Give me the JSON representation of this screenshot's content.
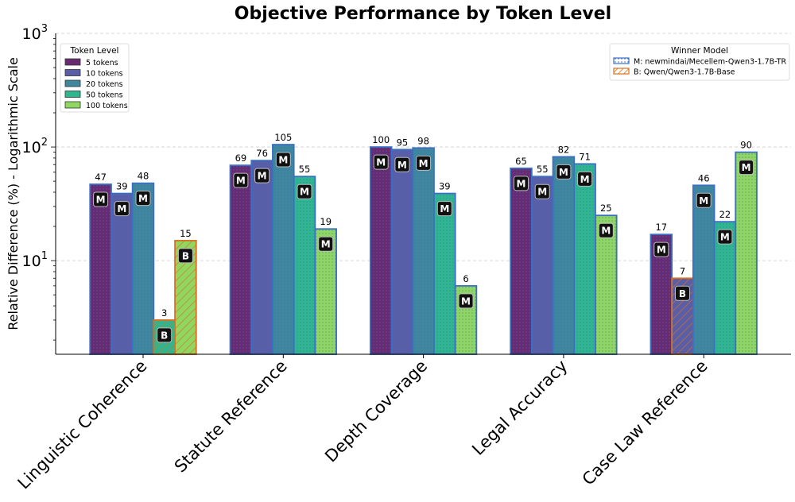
{
  "chart_data": {
    "type": "bar",
    "title": "Objective Performance by Token Level",
    "xlabel": "",
    "ylabel": "Relative Difference (%) - Logarithmic Scale",
    "yscale": "log",
    "ylim": [
      1.5,
      1000
    ],
    "yticks": [
      {
        "value": 10,
        "base": "10",
        "exp": "1"
      },
      {
        "value": 100,
        "base": "10",
        "exp": "2"
      },
      {
        "value": 1000,
        "base": "10",
        "exp": "3"
      }
    ],
    "grid": "horizontal dashed",
    "categories": [
      "Linguistic Coherence",
      "Statute Reference",
      "Depth Coverage",
      "Legal Accuracy",
      "Case Law Reference"
    ],
    "series": [
      {
        "name": "5 tokens",
        "color": "#682b72",
        "values": [
          47,
          69,
          100,
          65,
          17
        ],
        "winners": [
          "M",
          "M",
          "M",
          "M",
          "M"
        ]
      },
      {
        "name": "10 tokens",
        "color": "#5a5ea6",
        "values": [
          39,
          76,
          95,
          55,
          7
        ],
        "winners": [
          "M",
          "M",
          "M",
          "M",
          "B"
        ]
      },
      {
        "name": "20 tokens",
        "color": "#3e879d",
        "values": [
          48,
          105,
          98,
          82,
          46
        ],
        "winners": [
          "M",
          "M",
          "M",
          "M",
          "M"
        ]
      },
      {
        "name": "50 tokens",
        "color": "#2fb68f",
        "values": [
          3,
          55,
          39,
          71,
          22
        ],
        "winners": [
          "B",
          "M",
          "M",
          "M",
          "M"
        ]
      },
      {
        "name": "100 tokens",
        "color": "#8fd760",
        "values": [
          15,
          19,
          6,
          25,
          90
        ],
        "winners": [
          "B",
          "M",
          "M",
          "M",
          "M"
        ]
      }
    ],
    "legend": {
      "title": "Token Level",
      "placement": "upper-left"
    },
    "winner_legend": {
      "title": "Winner Model",
      "placement": "upper-right",
      "entries": [
        {
          "key": "M",
          "label": "M: newmindai/Mecellem-Qwen3-1.7B-TR",
          "edge_color": "#3a6fc4",
          "pattern": "dots"
        },
        {
          "key": "B",
          "label": "B: Qwen/Qwen3-1.7B-Base",
          "edge_color": "#d9711e",
          "pattern": "hatch"
        }
      ]
    }
  }
}
